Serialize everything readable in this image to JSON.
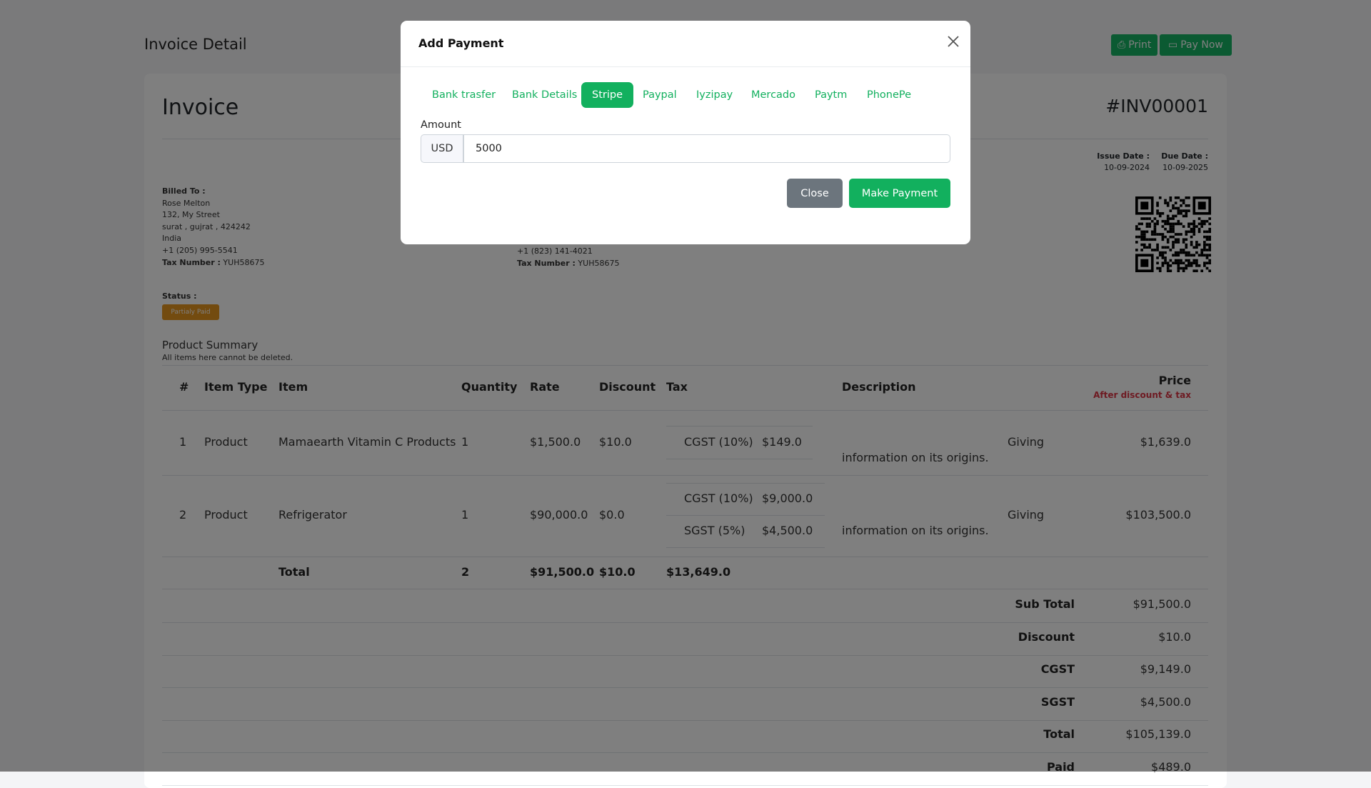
{
  "header": {
    "title": "Invoice Detail",
    "print_label": "Print",
    "pay_now_label": "Pay Now"
  },
  "invoice": {
    "title": "Invoice",
    "number": "#INV00001",
    "issue_date_label": "Issue Date :",
    "issue_date": "10-09-2024",
    "due_date_label": "Due Date :",
    "due_date": "10-09-2025",
    "billed_to": {
      "label": "Billed To :",
      "name": "Rose Melton",
      "street": "132, My Street",
      "city": "surat , gujrat , 424242",
      "country": "India",
      "phone": "+1 (205) 995-5541",
      "tax_label": "Tax Number :",
      "tax_number": "YUH58675"
    },
    "shipped_to": {
      "phone": "+1 (823) 141-4021",
      "tax_label": "Tax Number :",
      "tax_number": "YUH58675"
    },
    "status_label": "Status :",
    "status": "Partialy Paid",
    "status_color": "#e6961f"
  },
  "summary": {
    "title": "Product Summary",
    "note": "All items here cannot be deleted.",
    "columns": {
      "num": "#",
      "item_type": "Item Type",
      "item": "Item",
      "quantity": "Quantity",
      "rate": "Rate",
      "discount": "Discount",
      "tax": "Tax",
      "description": "Description",
      "price": "Price",
      "price_note": "After discount & tax"
    },
    "rows": [
      {
        "num": "1",
        "item_type": "Product",
        "item": "Mamaearth Vitamin C Products",
        "quantity": "1",
        "rate": "$1,500.0",
        "discount": "$10.0",
        "taxes": [
          {
            "name": "CGST (10%)",
            "amount": "$149.0"
          }
        ],
        "desc_a": "Giving",
        "desc_b": "information on its origins.",
        "price": "$1,639.0"
      },
      {
        "num": "2",
        "item_type": "Product",
        "item": "Refrigerator",
        "quantity": "1",
        "rate": "$90,000.0",
        "discount": "$0.0",
        "taxes": [
          {
            "name": "CGST (10%)",
            "amount": "$9,000.0"
          },
          {
            "name": "SGST (5%)",
            "amount": "$4,500.0"
          }
        ],
        "desc_a": "Giving",
        "desc_b": "information on its origins.",
        "price": "$103,500.0"
      }
    ],
    "total": {
      "label": "Total",
      "quantity": "2",
      "rate": "$91,500.0",
      "discount": "$10.0",
      "tax": "$13,649.0"
    },
    "totals": [
      {
        "label": "Sub Total",
        "value": "$91,500.0"
      },
      {
        "label": "Discount",
        "value": "$10.0"
      },
      {
        "label": "CGST",
        "value": "$9,149.0"
      },
      {
        "label": "SGST",
        "value": "$4,500.0"
      },
      {
        "label": "Total",
        "value": "$105,139.0"
      },
      {
        "label": "Paid",
        "value": "$489.0"
      }
    ]
  },
  "modal": {
    "title": "Add Payment",
    "tabs": [
      "Bank trasfer",
      "Bank Details",
      "Stripe",
      "Paypal",
      "Iyzipay",
      "Mercado",
      "Paytm",
      "PhonePe"
    ],
    "active_tab": "Stripe",
    "amount_label": "Amount",
    "currency": "USD",
    "amount": "5000",
    "close_label": "Close",
    "make_payment_label": "Make Payment"
  },
  "colors": {
    "accent": "#12b05e",
    "secondary": "#6c757d",
    "price_note": "#dc3545"
  }
}
